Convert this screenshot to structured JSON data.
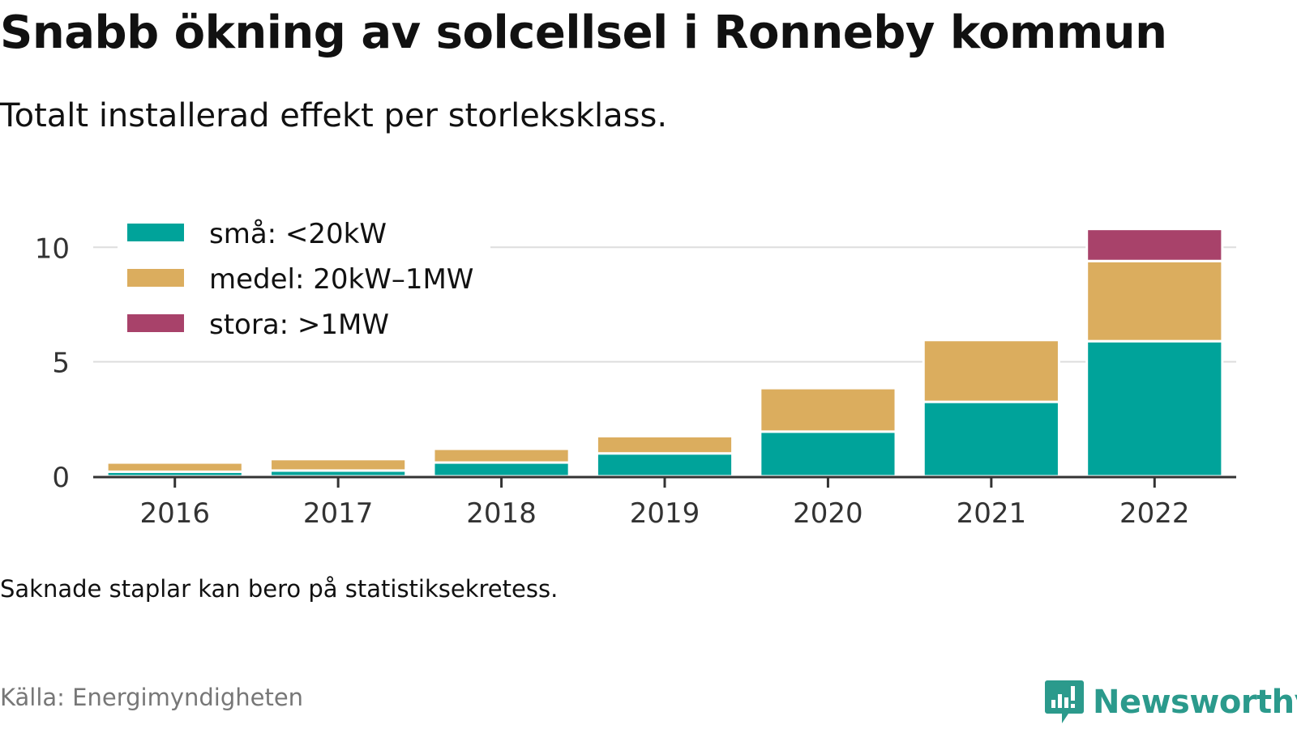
{
  "title": "Snabb ökning av solcellsel i Ronneby kommun",
  "subtitle": "Totalt installerad effekt per storleksklass.",
  "note": "Saknade staplar kan bero på statistiksekretess.",
  "source": "Källa: Energimyndigheten",
  "brand": {
    "name": "Newsworthy",
    "icon": "newsworthy-logo-icon",
    "color": "#2b9a8c"
  },
  "chart_data": {
    "type": "bar",
    "stacked": true,
    "categories": [
      "2016",
      "2017",
      "2018",
      "2019",
      "2020",
      "2021",
      "2022"
    ],
    "series": [
      {
        "name": "små: <20kW",
        "color": "#00a39a",
        "values": [
          0.2,
          0.25,
          0.6,
          1.0,
          1.95,
          3.25,
          5.9
        ]
      },
      {
        "name": "medel: 20kW–1MW",
        "color": "#dbad5e",
        "values": [
          0.4,
          0.5,
          0.6,
          0.75,
          1.9,
          2.7,
          3.5
        ]
      },
      {
        "name": "stora: >1MW",
        "color": "#a8426a",
        "values": [
          0,
          0,
          0,
          0,
          0,
          0,
          1.4
        ]
      }
    ],
    "ylim": [
      0,
      11
    ],
    "yticks": [
      0,
      5,
      10
    ],
    "grid": true,
    "legend": "top-left",
    "xlabel": "",
    "ylabel": ""
  }
}
